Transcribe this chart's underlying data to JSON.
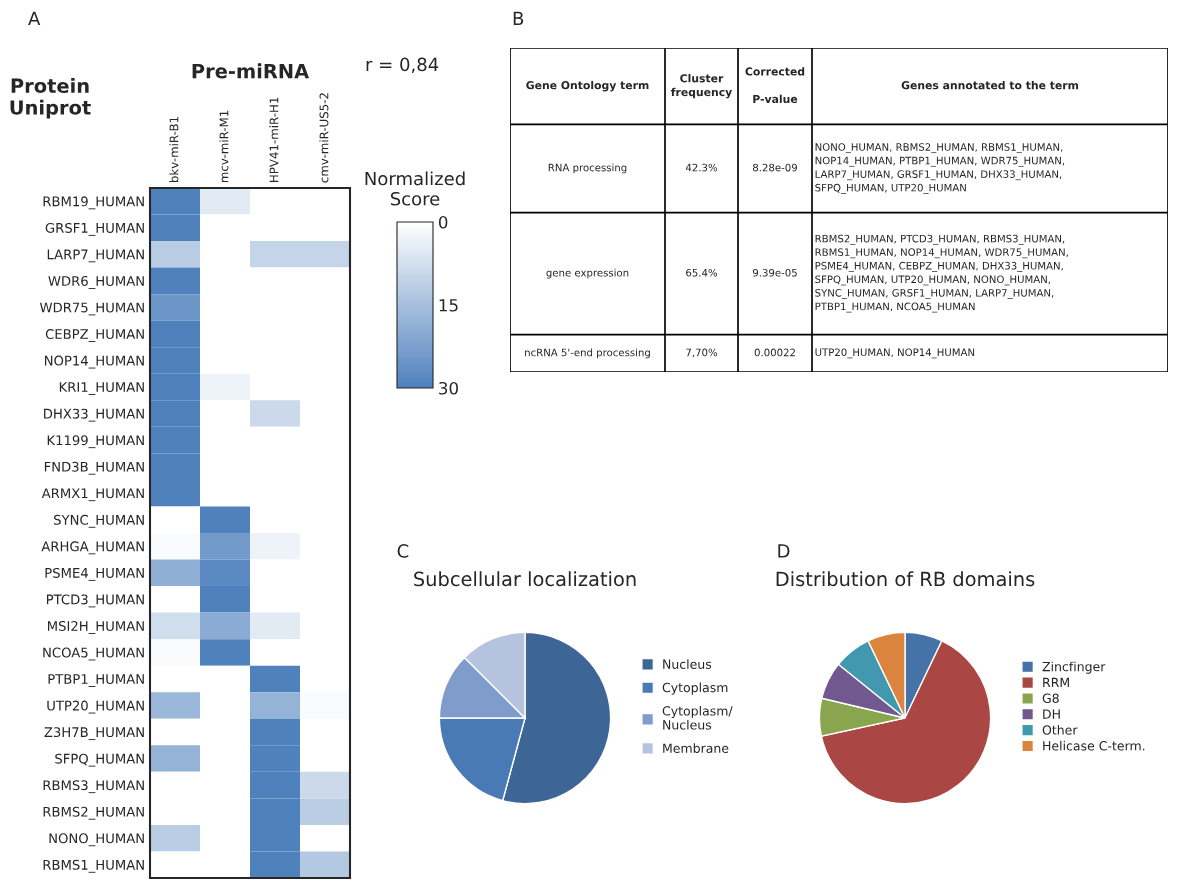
{
  "chart_data": [
    {
      "type": "heatmap",
      "annotations": [
        "A",
        "r = 0,84"
      ],
      "xlabel": "Pre-miRNA",
      "ylabel": "Protein\nUniprot",
      "clabel": "Normalized\nScore",
      "clim": [
        0,
        30
      ],
      "cticks": [
        0,
        15,
        30
      ],
      "color": "#4f81bd",
      "categories": [
        "bkv-miR-B1",
        "mcv-miR-M1",
        "HPV41-miR-H1",
        "cmv-miR-US5-2"
      ],
      "y_categories": [
        "RBM19_HUMAN",
        "GRSF1_HUMAN",
        "LARP7_HUMAN",
        "WDR6_HUMAN",
        "WDR75_HUMAN",
        "CEBPZ_HUMAN",
        "NOP14_HUMAN",
        "KRI1_HUMAN",
        "DHX33_HUMAN",
        "K1199_HUMAN",
        "FND3B_HUMAN",
        "ARMX1_HUMAN",
        "SYNC_HUMAN",
        "ARHGA_HUMAN",
        "PSME4_HUMAN",
        "PTCD3_HUMAN",
        "MSI2H_HUMAN",
        "NCOA5_HUMAN",
        "PTBP1_HUMAN",
        "UTP20_HUMAN",
        "Z3H7B_HUMAN",
        "SFPQ_HUMAN",
        "RBMS3_HUMAN",
        "RBMS2_HUMAN",
        "NONO_HUMAN",
        "RBMS1_HUMAN"
      ],
      "cells": [
        [
          30,
          5,
          0,
          0
        ],
        [
          30,
          0,
          0,
          0
        ],
        [
          12,
          0,
          10,
          10
        ],
        [
          30,
          0,
          0,
          0
        ],
        [
          25,
          0,
          0,
          0
        ],
        [
          30,
          0,
          0,
          0
        ],
        [
          30,
          0,
          0,
          0
        ],
        [
          30,
          3,
          0,
          0
        ],
        [
          30,
          0,
          9,
          0
        ],
        [
          30,
          0,
          0,
          0
        ],
        [
          30,
          0,
          0,
          0
        ],
        [
          30,
          0,
          0,
          0
        ],
        [
          0,
          30,
          0,
          0
        ],
        [
          1,
          24,
          3,
          0
        ],
        [
          19,
          28,
          0,
          0
        ],
        [
          0,
          30,
          0,
          0
        ],
        [
          8,
          20,
          5,
          0
        ],
        [
          1,
          30,
          0,
          0
        ],
        [
          0,
          0,
          30,
          0
        ],
        [
          17,
          0,
          18,
          1
        ],
        [
          0,
          0,
          30,
          0
        ],
        [
          18,
          0,
          30,
          0
        ],
        [
          0,
          0,
          30,
          9
        ],
        [
          0,
          0,
          30,
          12
        ],
        [
          12,
          0,
          30,
          0
        ],
        [
          0,
          0,
          30,
          13
        ]
      ]
    },
    {
      "type": "other",
      "categories": [
        "Gene Ontology term",
        "Cluster\nfrequency",
        "Corrected\n\nP-value",
        "Genes annotated to the term"
      ],
      "annotations": [
        "B",
        "RNA processing",
        "42.3%",
        "8.28e-09",
        "NONO_HUMAN, RBMS2_HUMAN, RBMS1_HUMAN,\nNOP14_HUMAN, PTBP1_HUMAN, WDR75_HUMAN,\nLARP7_HUMAN, GRSF1_HUMAN, DHX33_HUMAN,\nSFPQ_HUMAN, UTP20_HUMAN",
        "gene expression",
        "65.4%",
        "9.39e-05",
        "RBMS2_HUMAN, PTCD3_HUMAN, RBMS3_HUMAN,\nRBMS1_HUMAN, NOP14_HUMAN, WDR75_HUMAN,\nPSME4_HUMAN, CEBPZ_HUMAN, DHX33_HUMAN,\nSFPQ_HUMAN, UTP20_HUMAN, NONO_HUMAN,\nSYNC_HUMAN, GRSF1_HUMAN, LARP7_HUMAN,\nPTBP1_HUMAN, NCOA5_HUMAN",
        "ncRNA 5'-end processing",
        "7,70%",
        "0.00022",
        "UTP20_HUMAN, NOP14_HUMAN"
      ]
    },
    {
      "type": "pie",
      "title": "Subcellular localization",
      "annotations": [
        "C"
      ],
      "legend": "right",
      "categories": [
        "Nucleus",
        "Cytoplasm",
        "Cytoplasm/\nNucleus",
        "Membrane"
      ],
      "values": [
        54.2,
        20.8,
        12.5,
        12.5
      ],
      "colors": [
        "#3d6696",
        "#4a7ab5",
        "#7f9ccb",
        "#b5c3de"
      ]
    },
    {
      "type": "pie",
      "title": "Distribution of RB domains",
      "annotations": [
        "D"
      ],
      "legend": "right",
      "categories": [
        "Zincfinger",
        "RRM",
        "G8",
        "DH",
        "Other",
        "Helicase C-term."
      ],
      "values": [
        7.1,
        64.5,
        7.1,
        7.1,
        7.1,
        7.1
      ],
      "colors": [
        "#4572a7",
        "#aa4643",
        "#89a54e",
        "#71588f",
        "#4198af",
        "#db843d"
      ]
    }
  ]
}
